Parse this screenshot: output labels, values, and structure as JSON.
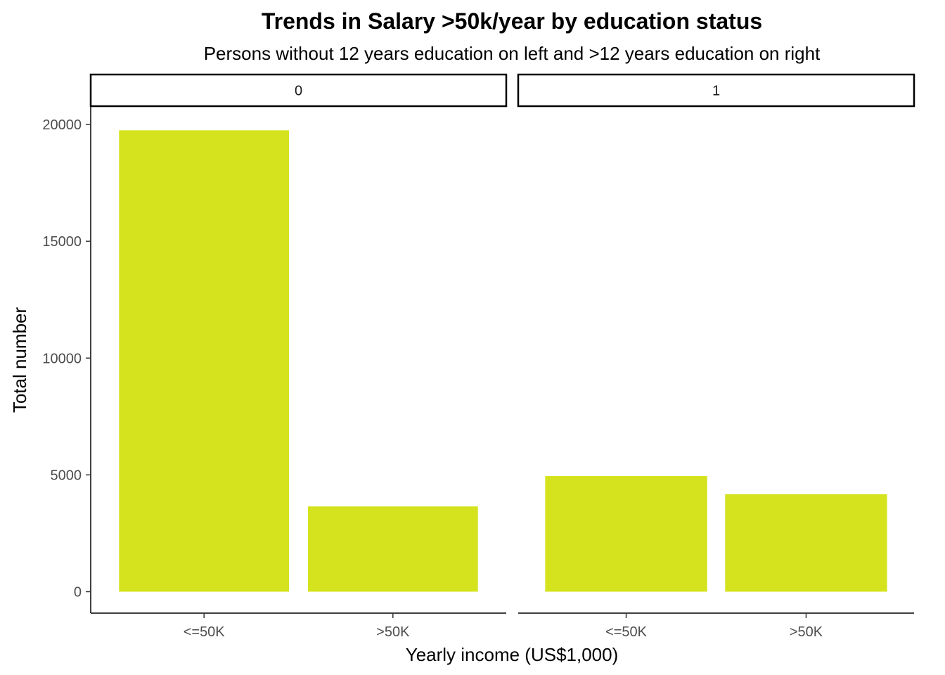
{
  "chart_data": {
    "type": "bar",
    "title": "Trends in Salary >50k/year by education status",
    "subtitle": "Persons without 12 years education on left and >12 years education on right",
    "xlabel": "Yearly income (US$1,000)",
    "ylabel": "Total number",
    "categories": [
      "<=50K",
      ">50K"
    ],
    "ylim": [
      0,
      20000
    ],
    "yticks": [
      0,
      5000,
      10000,
      15000,
      20000
    ],
    "grid": false,
    "bar_color": "#d4e31d",
    "panels": [
      {
        "label": "0",
        "values": [
          19750,
          3650
        ]
      },
      {
        "label": "1",
        "values": [
          4950,
          4170
        ]
      }
    ]
  }
}
